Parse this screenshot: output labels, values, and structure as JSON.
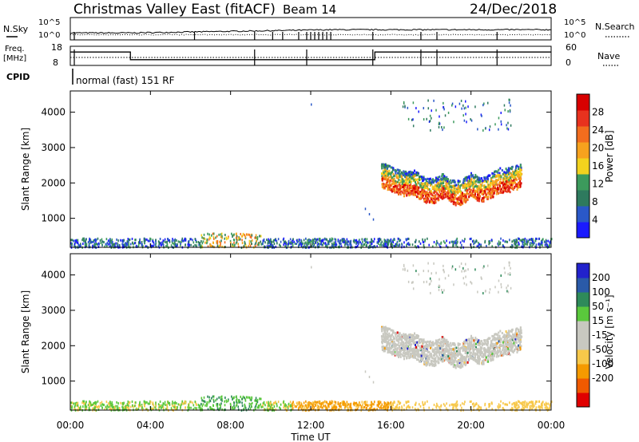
{
  "header": {
    "station": "Christmas Valley East (fitACF)",
    "beam": "Beam 14",
    "date": "24/Dec/2018"
  },
  "side_labels": {
    "nsky": "N.Sky",
    "freq_line1": "Freq.",
    "freq_line2": "[MHz]",
    "cpid": "CPID",
    "nsearch": "N.Search",
    "nave": "Nave"
  },
  "cpid_text": "normal (fast) 151 RF",
  "colors": {
    "power": [
      "#1a1aff",
      "#2a58c8",
      "#2e7a5e",
      "#3c9a5c",
      "#f2d21e",
      "#f7a21e",
      "#f26d1e",
      "#e8321e",
      "#d80000"
    ],
    "velocity": [
      "#e00000",
      "#f05a00",
      "#f59a00",
      "#f7c84a",
      "#c8c8c0",
      "#c8c8c0",
      "#5ac83c",
      "#2e8a5a",
      "#2a5aa8",
      "#2222cc"
    ]
  },
  "chart_data": [
    {
      "type": "line",
      "id": "noise",
      "left_ticks": [
        "10^5",
        "10^0"
      ],
      "right_ticks": [
        "10^5",
        "10^0"
      ],
      "note": "N.Sky solid, N.Search dotted"
    },
    {
      "type": "line",
      "id": "freq-nave",
      "left_ticks": [
        "18",
        "8"
      ],
      "right_ticks": [
        "60",
        "0"
      ],
      "freq_segments_mhz": [
        {
          "from": 0.0,
          "to": 3.0,
          "value": 15
        },
        {
          "from": 3.0,
          "to": 15.2,
          "value": 11
        },
        {
          "from": 15.2,
          "to": 24.0,
          "value": 15
        }
      ]
    },
    {
      "type": "heatmap",
      "id": "power",
      "ylabel": "Slant Range [km]",
      "yticks": [
        "1000",
        "2000",
        "3000",
        "4000"
      ],
      "yrange": [
        180,
        4600
      ],
      "colorbar_label": "Power [dB]",
      "colorbar_ticks": [
        "4",
        "8",
        "12",
        "16",
        "20",
        "24",
        "28"
      ],
      "colorbar_range": [
        0,
        32
      ]
    },
    {
      "type": "heatmap",
      "id": "velocity",
      "ylabel": "Slant Range [km]",
      "yticks": [
        "1000",
        "2000",
        "3000",
        "4000"
      ],
      "yrange": [
        180,
        4600
      ],
      "colorbar_label": "Velocity [m s⁻¹]",
      "colorbar_ticks": [
        "200",
        "100",
        "50",
        "15",
        "-15",
        "-50",
        "-100",
        "-200"
      ]
    }
  ],
  "xaxis": {
    "ticks": [
      "00:00",
      "04:00",
      "08:00",
      "12:00",
      "16:00",
      "20:00",
      "00:00"
    ],
    "label": "Time UT",
    "range_hours": [
      0,
      24
    ]
  }
}
